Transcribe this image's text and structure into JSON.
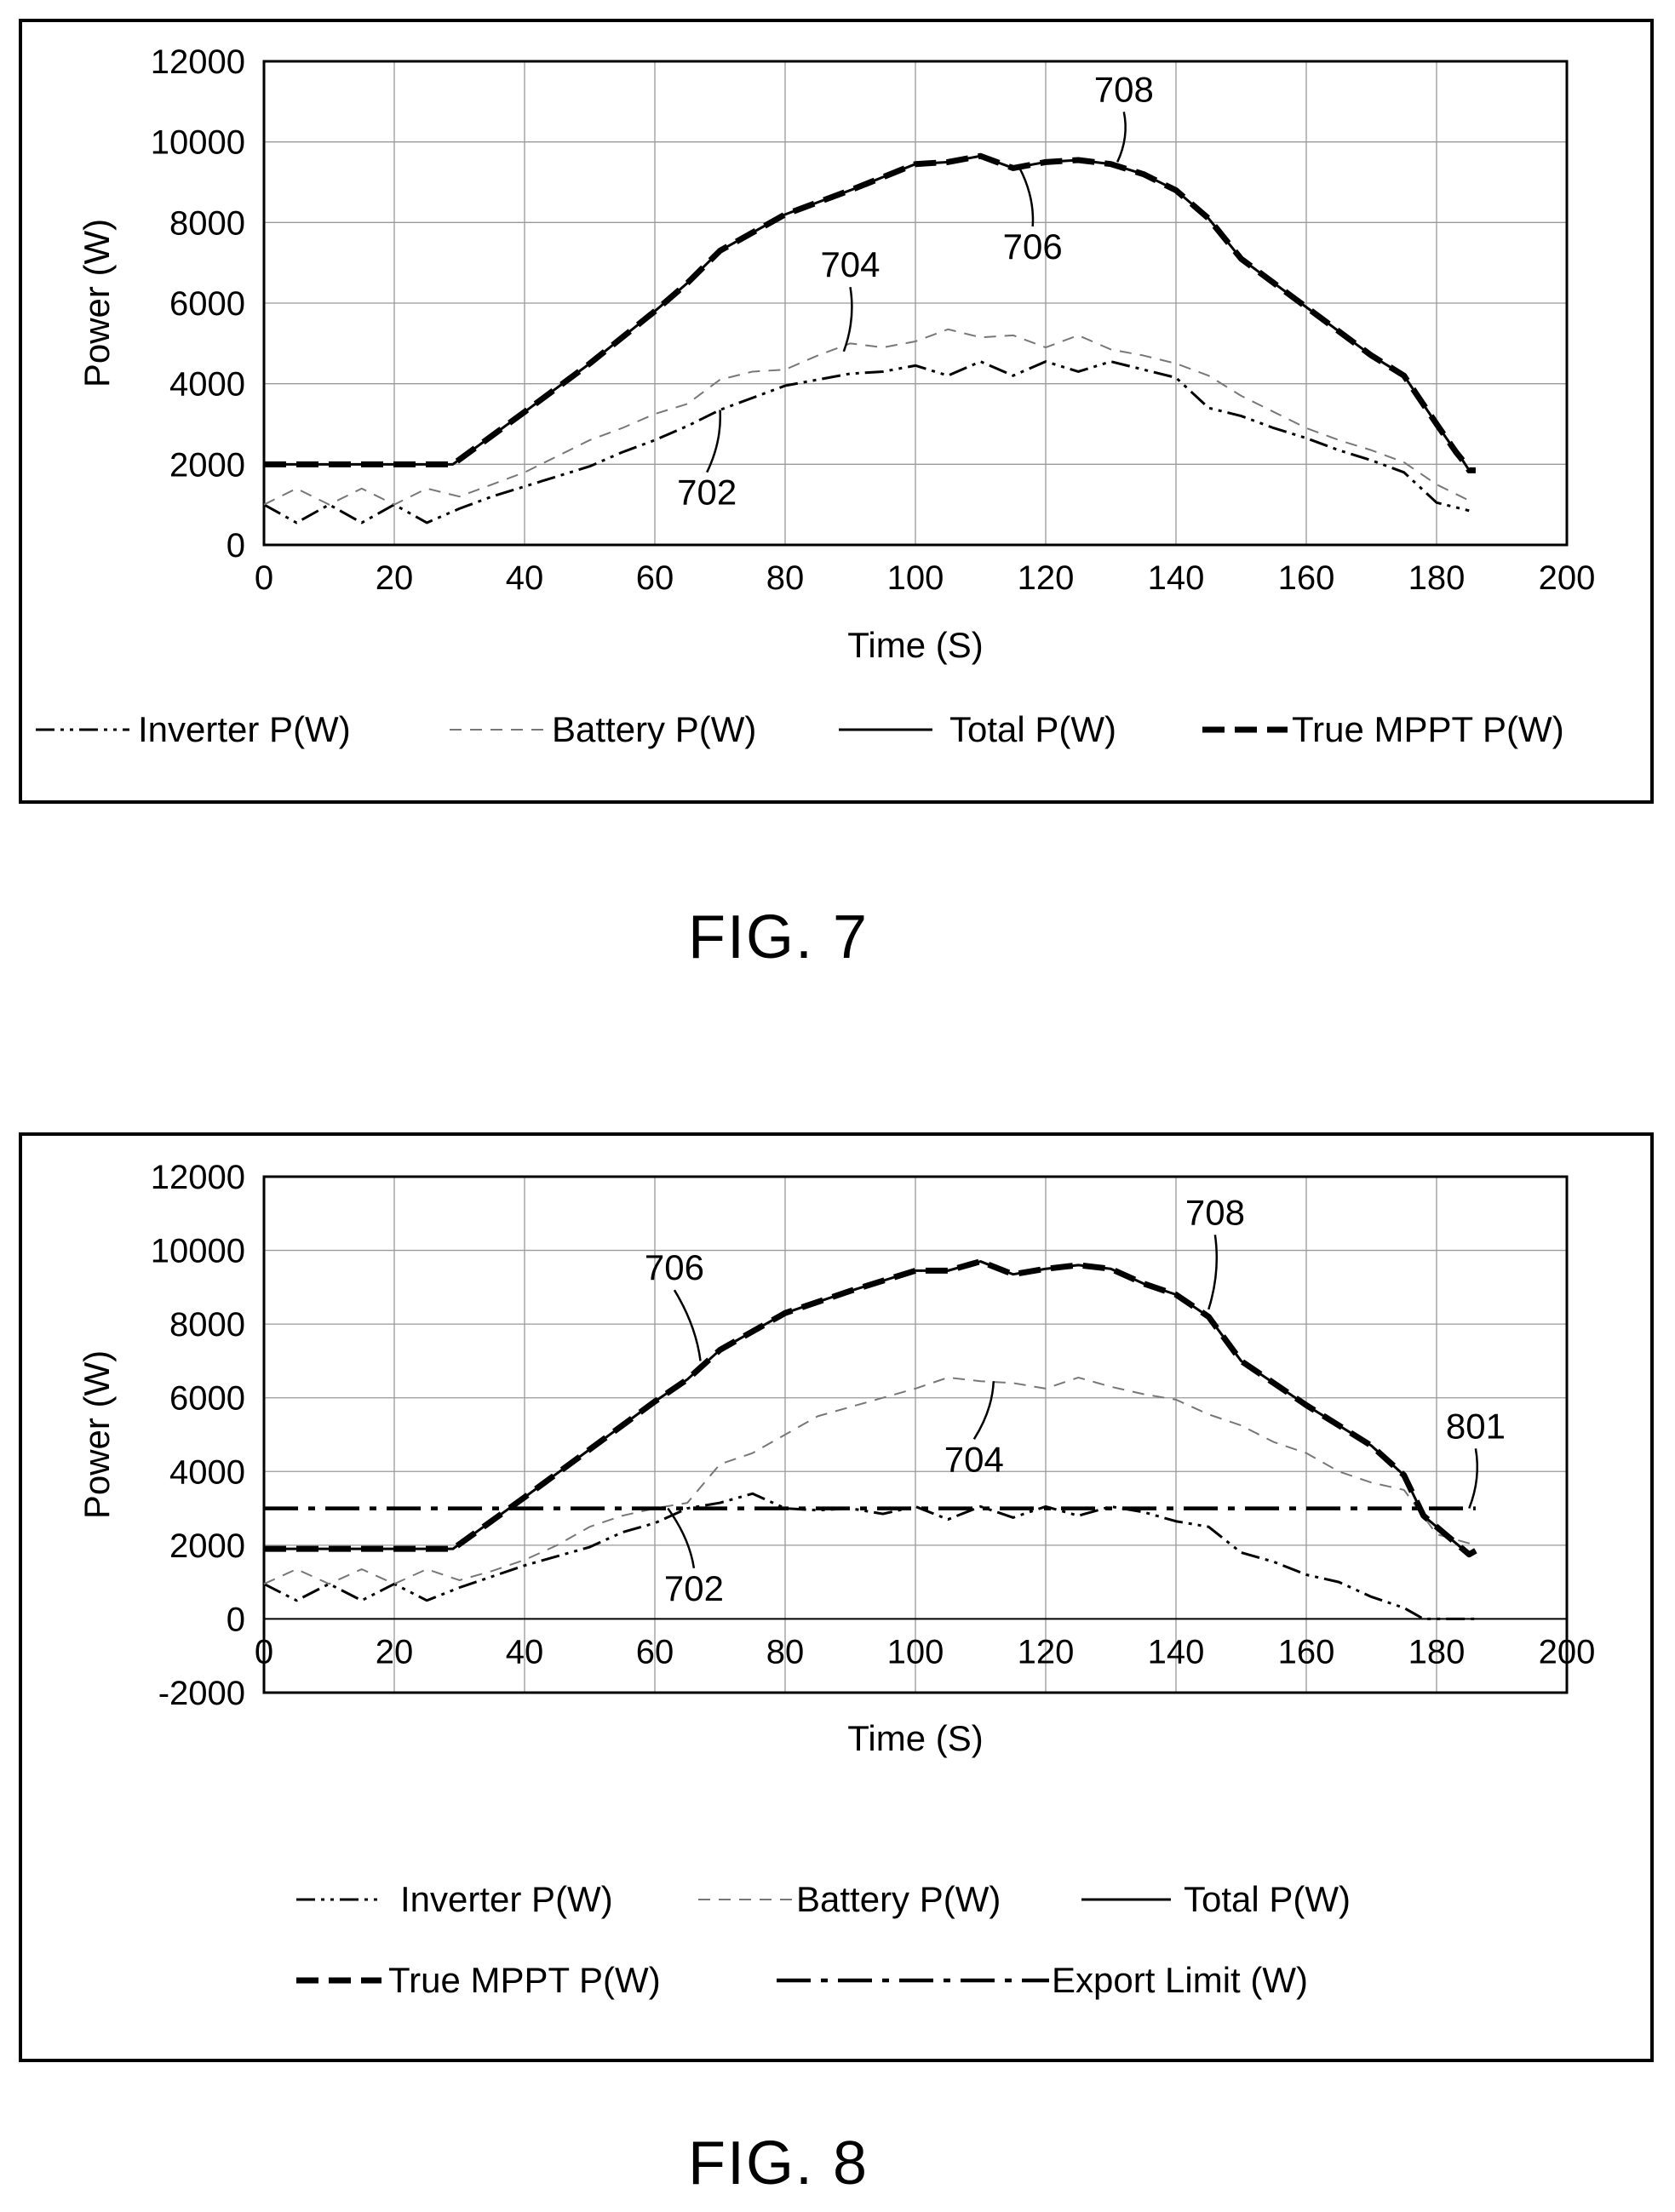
{
  "figures": [
    {
      "id": "fig7",
      "label": "FIG. 7"
    },
    {
      "id": "fig8",
      "label": "FIG. 8"
    }
  ],
  "chart_data": [
    {
      "type": "line",
      "figure": "FIG. 7",
      "xlabel": "Time (S)",
      "ylabel": "Power (W)",
      "xlim": [
        0,
        200
      ],
      "ylim": [
        0,
        12000
      ],
      "xticks": [
        "0",
        "20",
        "40",
        "60",
        "80",
        "100",
        "120",
        "140",
        "160",
        "180",
        "200"
      ],
      "yticks": [
        "0",
        "2000",
        "4000",
        "6000",
        "8000",
        "10000",
        "12000"
      ],
      "grid": true,
      "legend_position": "bottom",
      "series": [
        {
          "name": "Inverter P(W)",
          "style": "dashdotdot",
          "color": "#000000",
          "x": [
            0,
            5,
            10,
            15,
            20,
            25,
            30,
            35,
            40,
            45,
            50,
            55,
            60,
            65,
            70,
            75,
            80,
            85,
            90,
            95,
            100,
            105,
            110,
            115,
            120,
            125,
            130,
            135,
            140,
            145,
            150,
            155,
            160,
            165,
            170,
            175,
            180,
            185
          ],
          "y": [
            1000,
            550,
            1000,
            550,
            1000,
            550,
            900,
            1200,
            1450,
            1700,
            1950,
            2300,
            2600,
            2950,
            3350,
            3650,
            3950,
            4100,
            4250,
            4300,
            4450,
            4200,
            4550,
            4200,
            4550,
            4300,
            4550,
            4350,
            4150,
            3400,
            3200,
            2900,
            2650,
            2350,
            2100,
            1800,
            1050,
            850
          ]
        },
        {
          "name": "Battery P(W)",
          "style": "dash-thin",
          "color": "#777777",
          "x": [
            0,
            5,
            10,
            15,
            20,
            25,
            30,
            35,
            40,
            45,
            50,
            55,
            60,
            65,
            70,
            75,
            80,
            85,
            90,
            95,
            100,
            105,
            110,
            115,
            120,
            125,
            130,
            135,
            140,
            145,
            150,
            155,
            160,
            165,
            170,
            175,
            180,
            185
          ],
          "y": [
            1000,
            1400,
            1000,
            1400,
            1000,
            1400,
            1200,
            1500,
            1800,
            2200,
            2600,
            2900,
            3250,
            3500,
            4100,
            4300,
            4350,
            4700,
            5000,
            4900,
            5050,
            5350,
            5150,
            5200,
            4900,
            5200,
            4850,
            4700,
            4500,
            4200,
            3700,
            3300,
            2900,
            2600,
            2350,
            2050,
            1500,
            1100
          ]
        },
        {
          "name": "Total P(W)",
          "style": "solid",
          "color": "#000000",
          "x": [
            0,
            10,
            20,
            29,
            40,
            50,
            60,
            65,
            70,
            80,
            90,
            100,
            105,
            110,
            115,
            120,
            125,
            130,
            135,
            140,
            145,
            150,
            160,
            170,
            175,
            180,
            183,
            184,
            185,
            186
          ],
          "y": [
            2000,
            2000,
            2000,
            2000,
            3300,
            4500,
            5800,
            6500,
            7300,
            8200,
            8800,
            9450,
            9500,
            9650,
            9350,
            9500,
            9550,
            9450,
            9200,
            8800,
            8100,
            7100,
            5900,
            4700,
            4200,
            3000,
            2300,
            2100,
            1850,
            1850
          ]
        },
        {
          "name": "True MPPT P(W)",
          "style": "dash-thick",
          "color": "#000000",
          "x": [
            0,
            10,
            20,
            29,
            40,
            50,
            60,
            65,
            70,
            80,
            90,
            100,
            105,
            110,
            115,
            120,
            125,
            130,
            135,
            140,
            145,
            150,
            160,
            170,
            175,
            180,
            183,
            184,
            185,
            186
          ],
          "y": [
            2000,
            2000,
            2000,
            2000,
            3300,
            4500,
            5800,
            6500,
            7300,
            8200,
            8800,
            9450,
            9500,
            9650,
            9350,
            9500,
            9550,
            9450,
            9200,
            8800,
            8100,
            7100,
            5900,
            4700,
            4200,
            3000,
            2300,
            2100,
            1850,
            1850
          ]
        }
      ],
      "annotations": [
        {
          "text": "708",
          "x": 132,
          "y": 11000,
          "target_x": 131,
          "target_y": 9500
        },
        {
          "text": "706",
          "x": 118,
          "y": 7100,
          "target_x": 116,
          "target_y": 9350
        },
        {
          "text": "704",
          "x": 90,
          "y": 6650,
          "target_x": 89,
          "target_y": 4800
        },
        {
          "text": "702",
          "x": 68,
          "y": 1000,
          "target_x": 70,
          "target_y": 3350
        }
      ]
    },
    {
      "type": "line",
      "figure": "FIG. 8",
      "xlabel": "Time (S)",
      "ylabel": "Power (W)",
      "xlim": [
        0,
        200
      ],
      "ylim": [
        -2000,
        12000
      ],
      "xticks": [
        "0",
        "20",
        "40",
        "60",
        "80",
        "100",
        "120",
        "140",
        "160",
        "180",
        "200"
      ],
      "yticks": [
        "-2000",
        "0",
        "2000",
        "4000",
        "6000",
        "8000",
        "10000",
        "12000"
      ],
      "grid": true,
      "legend_position": "bottom",
      "series": [
        {
          "name": "Inverter P(W)",
          "style": "dashdotdot",
          "color": "#000000",
          "x": [
            0,
            5,
            10,
            15,
            20,
            25,
            30,
            35,
            40,
            45,
            50,
            55,
            60,
            65,
            70,
            75,
            80,
            85,
            90,
            95,
            100,
            105,
            110,
            115,
            120,
            125,
            130,
            135,
            140,
            145,
            150,
            155,
            160,
            165,
            170,
            175,
            178,
            182,
            186
          ],
          "y": [
            950,
            500,
            950,
            500,
            950,
            500,
            850,
            1150,
            1450,
            1700,
            1950,
            2350,
            2600,
            3000,
            3150,
            3400,
            3000,
            2950,
            3000,
            2850,
            3050,
            2700,
            3050,
            2750,
            3050,
            2800,
            3050,
            2900,
            2650,
            2500,
            1800,
            1550,
            1200,
            1000,
            600,
            300,
            0,
            0,
            0
          ]
        },
        {
          "name": "Battery P(W)",
          "style": "dash-thin",
          "color": "#777777",
          "x": [
            0,
            5,
            10,
            15,
            20,
            25,
            30,
            35,
            40,
            45,
            50,
            55,
            60,
            65,
            70,
            75,
            80,
            85,
            90,
            95,
            100,
            105,
            110,
            115,
            120,
            125,
            130,
            135,
            140,
            145,
            150,
            155,
            160,
            165,
            170,
            175,
            180,
            186
          ],
          "y": [
            950,
            1350,
            950,
            1350,
            950,
            1350,
            1050,
            1300,
            1600,
            2000,
            2500,
            2800,
            3000,
            3150,
            4200,
            4500,
            5000,
            5500,
            5750,
            6000,
            6250,
            6550,
            6450,
            6400,
            6250,
            6550,
            6300,
            6100,
            5950,
            5550,
            5250,
            4800,
            4500,
            4000,
            3700,
            3500,
            2300,
            2000
          ]
        },
        {
          "name": "Total P(W)",
          "style": "solid",
          "color": "#000000",
          "x": [
            0,
            10,
            20,
            29,
            40,
            50,
            60,
            65,
            70,
            80,
            90,
            100,
            105,
            110,
            115,
            120,
            125,
            130,
            135,
            140,
            145,
            150,
            160,
            170,
            175,
            178,
            182,
            185,
            186
          ],
          "y": [
            1900,
            1900,
            1900,
            1900,
            3300,
            4600,
            5900,
            6500,
            7300,
            8300,
            8900,
            9450,
            9450,
            9700,
            9350,
            9500,
            9600,
            9500,
            9100,
            8800,
            8200,
            7000,
            5800,
            4700,
            3900,
            2800,
            2200,
            1750,
            1850
          ]
        },
        {
          "name": "True MPPT P(W)",
          "style": "dash-thick",
          "color": "#000000",
          "x": [
            0,
            10,
            20,
            29,
            40,
            50,
            60,
            65,
            70,
            80,
            90,
            100,
            105,
            110,
            115,
            120,
            125,
            130,
            135,
            140,
            145,
            150,
            160,
            170,
            175,
            178,
            182,
            185,
            186
          ],
          "y": [
            1900,
            1900,
            1900,
            1900,
            3300,
            4600,
            5900,
            6500,
            7300,
            8300,
            8900,
            9450,
            9450,
            9700,
            9350,
            9500,
            9600,
            9500,
            9100,
            8800,
            8200,
            7000,
            5800,
            4700,
            3900,
            2800,
            2200,
            1750,
            1850
          ]
        },
        {
          "name": "Export Limit (W)",
          "style": "dashdot-long",
          "color": "#000000",
          "x": [
            0,
            186
          ],
          "y": [
            3000,
            3000
          ]
        }
      ],
      "annotations": [
        {
          "text": "706",
          "x": 63,
          "y": 9200,
          "target_x": 67,
          "target_y": 7000
        },
        {
          "text": "708",
          "x": 146,
          "y": 10700,
          "target_x": 145,
          "target_y": 8400
        },
        {
          "text": "704",
          "x": 109,
          "y": 4000,
          "target_x": 112,
          "target_y": 6450
        },
        {
          "text": "702",
          "x": 66,
          "y": 500,
          "target_x": 62,
          "target_y": 3000
        },
        {
          "text": "801",
          "x": 186,
          "y": 4900,
          "target_x": 185,
          "target_y": 3000
        }
      ]
    }
  ]
}
